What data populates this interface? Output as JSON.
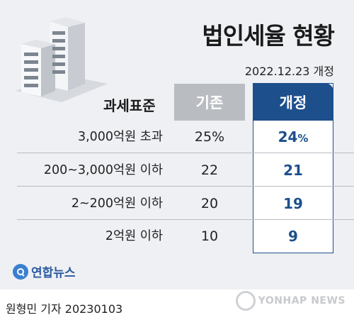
{
  "title": "법인세율 현황",
  "date_note": "2022.12.23 개정",
  "table": {
    "header_label": "과세표준",
    "header_old": "기존",
    "header_new": "개정",
    "rows": [
      {
        "category": "3,000억원 초과",
        "old": "25%",
        "new": "24",
        "new_unit": "%"
      },
      {
        "category": "200~3,000억원 이하",
        "old": "22",
        "new": "21",
        "new_unit": ""
      },
      {
        "category": "2~200억원 이하",
        "old": "20",
        "new": "19",
        "new_unit": ""
      },
      {
        "category": "2억원 이하",
        "old": "10",
        "new": "9",
        "new_unit": ""
      }
    ]
  },
  "brand": {
    "logo_text": "연합뉴스",
    "watermark_text": "YONHAP NEWS"
  },
  "byline": "원형민 기자  20230103",
  "colors": {
    "accent": "#1d4f8c",
    "header_gray": "#b9bcc1",
    "panel_bg": "#eef0f3"
  },
  "icons": {
    "illustration": "office-buildings-icon"
  }
}
